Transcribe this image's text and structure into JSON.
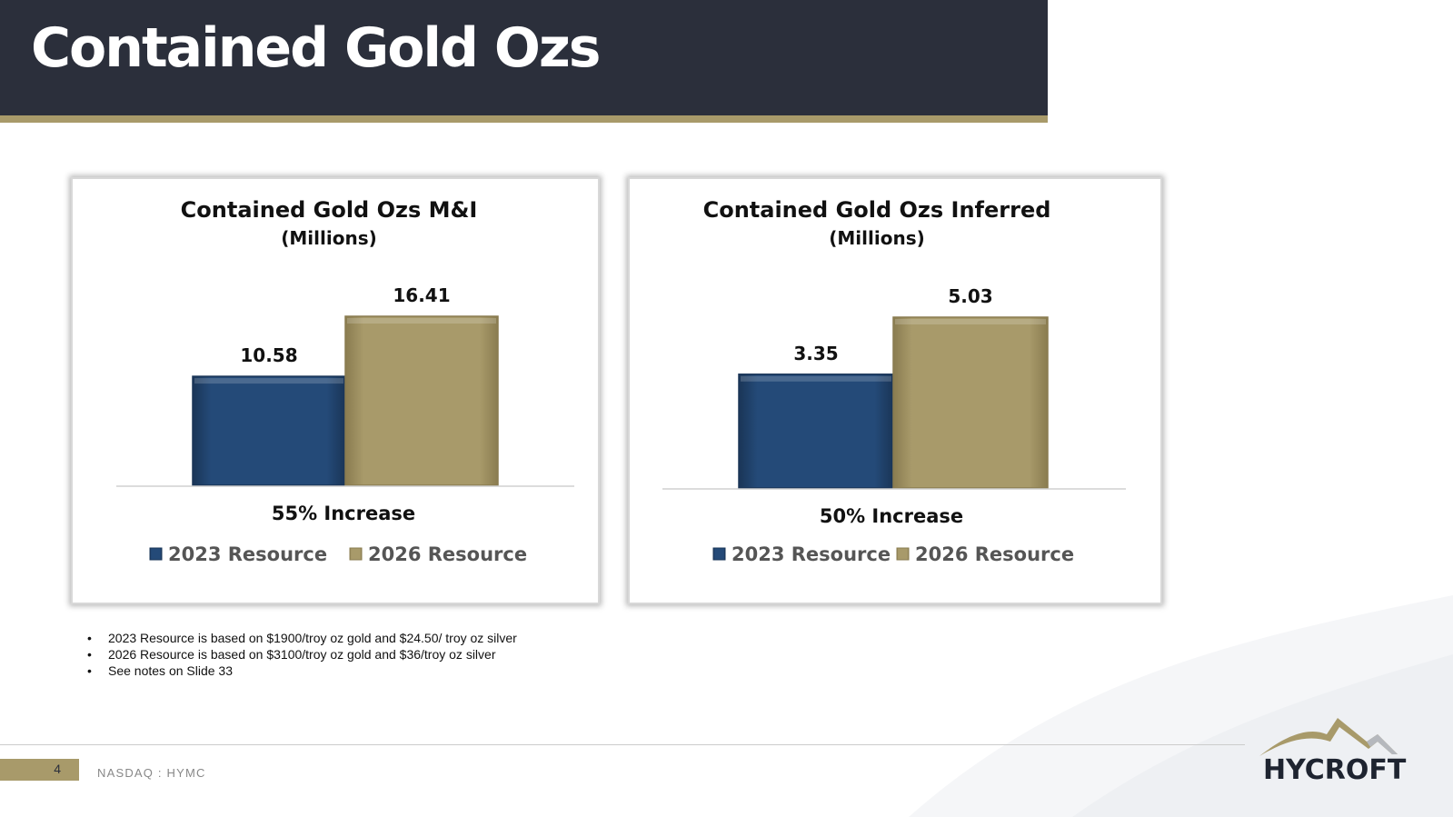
{
  "title": "Contained Gold Ozs",
  "colors": {
    "title_bar": "#2b2f3b",
    "accent": "#a89a6a",
    "series_2023": "#244a78",
    "series_2026": "#a89a6a"
  },
  "chart_data": [
    {
      "type": "bar",
      "title": "Contained Gold Ozs M&I",
      "subtitle": "(Millions)",
      "categories": [
        "2023 Resource",
        "2026 Resource"
      ],
      "values": [
        10.58,
        16.41
      ],
      "value_labels": [
        "10.58",
        "16.41"
      ],
      "annotation": "55% Increase",
      "legend": [
        "2023 Resource",
        "2026 Resource"
      ],
      "legend_position": "bottom",
      "grid": false
    },
    {
      "type": "bar",
      "title": "Contained Gold Ozs Inferred",
      "subtitle": "(Millions)",
      "categories": [
        "2023 Resource",
        "2026 Resource"
      ],
      "values": [
        3.35,
        5.03
      ],
      "value_labels": [
        "3.35",
        "5.03"
      ],
      "annotation": "50% Increase",
      "legend": [
        "2023 Resource",
        "2026 Resource"
      ],
      "legend_position": "bottom",
      "grid": false
    }
  ],
  "notes": [
    "2023 Resource is based on $1900/troy oz gold and $24.50/ troy oz silver",
    "2026 Resource is based on $3100/troy oz gold and $36/troy oz silver",
    "See notes on Slide 33"
  ],
  "footer": {
    "page_number": "4",
    "ticker": "NASDAQ : HYMC"
  },
  "logo": {
    "text": "HYCROFT",
    "icon": "mountain-logo-icon"
  }
}
